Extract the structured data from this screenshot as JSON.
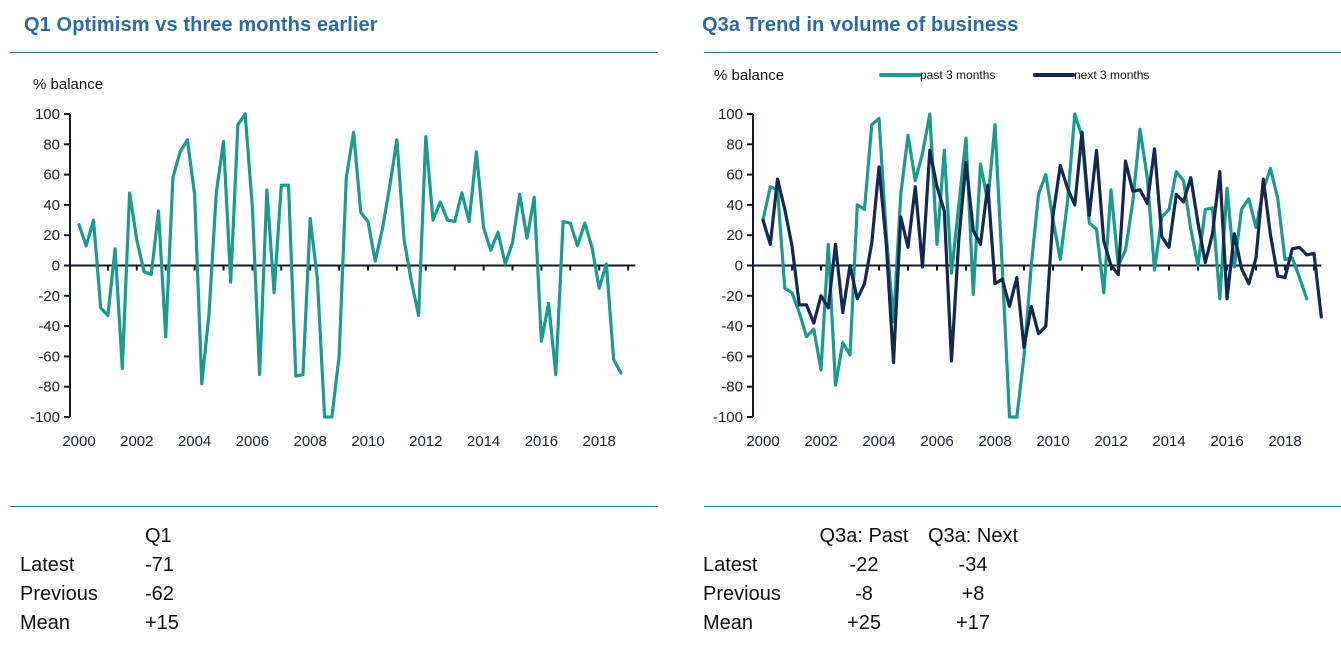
{
  "colors": {
    "title": "#2c6aa0",
    "rule": "#3d6d94",
    "series_past": "#1a9b8f",
    "series_next": "#142850",
    "axis": "#111827"
  },
  "left": {
    "title": "Q1 Optimism vs three months earlier",
    "stats": {
      "header": "Q1",
      "rows": [
        {
          "label": "Latest",
          "value": "-71"
        },
        {
          "label": "Previous",
          "value": "-62"
        },
        {
          "label": "Mean",
          "value": "+15"
        }
      ]
    }
  },
  "right": {
    "title": "Q3a Trend in volume of business",
    "stats": {
      "headers": [
        "Q3a: Past",
        "Q3a: Next"
      ],
      "rows": [
        {
          "label": "Latest",
          "values": [
            "-22",
            "-34"
          ]
        },
        {
          "label": "Previous",
          "values": [
            "-8",
            "+8"
          ]
        },
        {
          "label": "Mean",
          "values": [
            "+25",
            "+17"
          ]
        }
      ]
    }
  },
  "chart_data": [
    {
      "type": "line",
      "title": "Q1 Optimism vs three months earlier",
      "ylabel": "% balance",
      "xlabel": "",
      "ylim": [
        -100,
        100
      ],
      "yticks": [
        100,
        80,
        60,
        40,
        20,
        0,
        -20,
        -40,
        -60,
        -80,
        -100
      ],
      "xticks": [
        "2000",
        "2002",
        "2004",
        "2006",
        "2008",
        "2010",
        "2012",
        "2014",
        "2016",
        "2018"
      ],
      "x_start": 2000.0,
      "x_step": 0.25,
      "grid": false,
      "legend": "none",
      "series": [
        {
          "name": "Q1",
          "color": "#1a9b8f",
          "values": [
            27,
            13,
            30,
            -28,
            -33,
            11,
            -68,
            48,
            17,
            -4,
            -6,
            36,
            -47,
            58,
            75,
            83,
            47,
            -78,
            -32,
            48,
            82,
            -11,
            93,
            100,
            38,
            -72,
            50,
            -18,
            53,
            53,
            -73,
            -72,
            31,
            -9,
            -100,
            -100,
            -60,
            58,
            88,
            35,
            29,
            3,
            24,
            52,
            83,
            17,
            -10,
            -33,
            85,
            30,
            42,
            30,
            29,
            48,
            29,
            75,
            25,
            10,
            22,
            1,
            15,
            47,
            18,
            45,
            -50,
            -25,
            -72,
            29,
            28,
            13,
            28,
            12,
            -15,
            1,
            -62,
            -71
          ]
        }
      ]
    },
    {
      "type": "line",
      "title": "Q3a Trend in volume of business",
      "ylabel": "% balance",
      "xlabel": "",
      "ylim": [
        -100,
        100
      ],
      "yticks": [
        100,
        80,
        60,
        40,
        20,
        0,
        -20,
        -40,
        -60,
        -80,
        -100
      ],
      "xticks": [
        "2000",
        "2002",
        "2004",
        "2006",
        "2008",
        "2010",
        "2012",
        "2014",
        "2016",
        "2018"
      ],
      "x_start": 2000.0,
      "x_step": 0.25,
      "grid": false,
      "legend": "top",
      "series": [
        {
          "name": "past 3 months",
          "color": "#1a9b8f",
          "values": [
            30,
            52,
            50,
            -15,
            -18,
            -31,
            -47,
            -42,
            -69,
            14,
            -79,
            -51,
            -59,
            40,
            37,
            93,
            97,
            20,
            -37,
            47,
            86,
            56,
            74,
            100,
            14,
            76,
            -5,
            40,
            84,
            -19,
            67,
            42,
            93,
            -2,
            -100,
            -100,
            -60,
            0,
            47,
            60,
            30,
            4,
            42,
            100,
            85,
            28,
            24,
            -18,
            50,
            0,
            10,
            42,
            90,
            58,
            -3,
            32,
            37,
            62,
            56,
            24,
            0,
            37,
            38,
            -22,
            51,
            -1,
            37,
            44,
            25,
            50,
            64,
            44,
            4,
            5,
            -8,
            -22
          ]
        },
        {
          "name": "next 3 months",
          "color": "#142850",
          "values": [
            30,
            14,
            57,
            37,
            13,
            -26,
            -26,
            -38,
            -20,
            -28,
            14,
            -31,
            0,
            -22,
            -12,
            15,
            65,
            14,
            -64,
            32,
            12,
            52,
            -1,
            76,
            52,
            36,
            -63,
            17,
            68,
            23,
            14,
            53,
            -12,
            -9,
            -27,
            -8,
            -54,
            -27,
            -45,
            -40,
            33,
            66,
            51,
            40,
            88,
            33,
            76,
            16,
            0,
            -6,
            69,
            49,
            50,
            41,
            77,
            19,
            12,
            47,
            42,
            58,
            28,
            2,
            21,
            62,
            -22,
            21,
            -2,
            -12,
            5,
            57,
            20,
            -7,
            -8,
            11,
            12,
            7,
            8,
            -34
          ]
        }
      ]
    }
  ]
}
